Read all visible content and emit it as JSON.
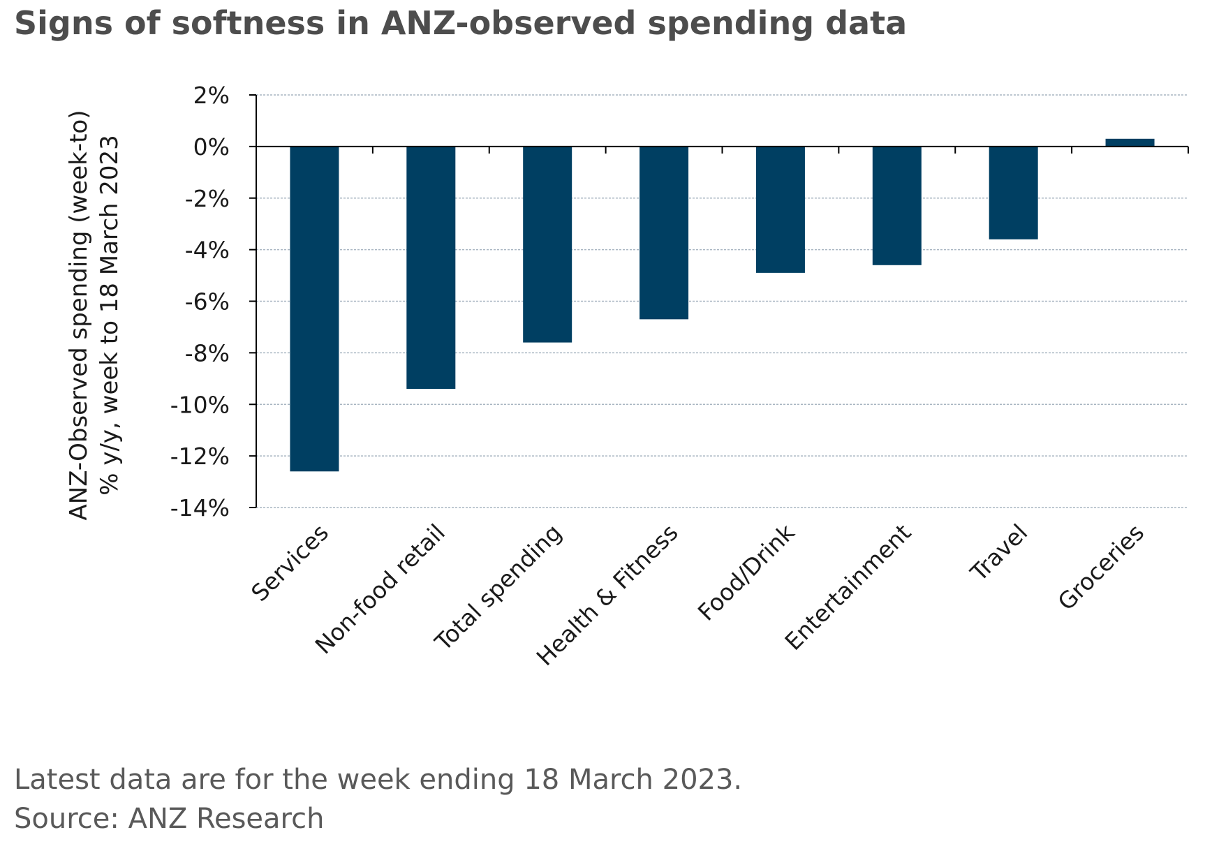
{
  "title": "Signs of softness in ANZ-observed spending data",
  "footnote": "Latest data are for the week ending 18 March 2023.",
  "source": "Source: ANZ Research",
  "colors": {
    "bar": "#003f62",
    "grid": "#a9b6c2",
    "axis": "#000000",
    "title": "#4d4d4d",
    "text": "#1a1a1a"
  },
  "chart_data": {
    "type": "bar",
    "title": "Signs of softness in ANZ-observed spending data",
    "categories": [
      "Services",
      "Non-food retail",
      "Total spending",
      "Health & Fitness",
      "Food/Drink",
      "Entertainment",
      "Travel",
      "Groceries"
    ],
    "values": [
      -12.6,
      -9.4,
      -7.6,
      -6.7,
      -4.9,
      -4.6,
      -3.6,
      0.3
    ],
    "ylabel_lines": [
      "ANZ-Observed spending (week-to)",
      "% y/y, week to 18 March 2023"
    ],
    "xlabel": "",
    "ylim": [
      -14,
      2
    ],
    "yticks": [
      2,
      0,
      -2,
      -4,
      -6,
      -8,
      -10,
      -12,
      -14
    ],
    "ytick_labels": [
      "2%",
      "0%",
      "-2%",
      "-4%",
      "-6%",
      "-8%",
      "-10%",
      "-12%",
      "-14%"
    ],
    "grid": true,
    "legend": "none"
  }
}
